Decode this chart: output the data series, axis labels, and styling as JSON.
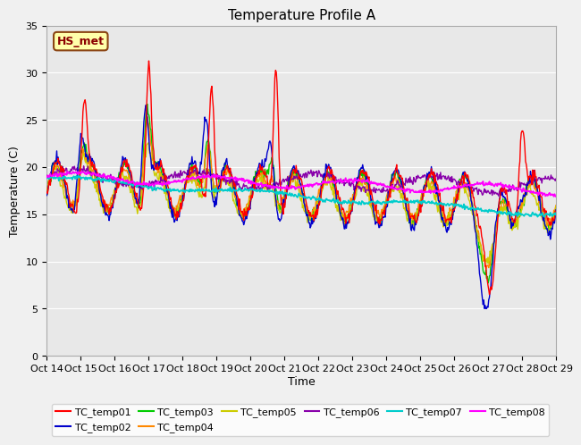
{
  "title": "Temperature Profile A",
  "xlabel": "Time",
  "ylabel": "Temperature (C)",
  "ylim": [
    0,
    35
  ],
  "xlim": [
    0,
    15
  ],
  "x_tick_labels": [
    "Oct 14",
    "Oct 15",
    "Oct 16",
    "Oct 17",
    "Oct 18",
    "Oct 19",
    "Oct 20",
    "Oct 21",
    "Oct 22",
    "Oct 23",
    "Oct 24",
    "Oct 25",
    "Oct 26",
    "Oct 27",
    "Oct 28",
    "Oct 29"
  ],
  "annotation": "HS_met",
  "annotation_color": "#8B0000",
  "annotation_bg": "#ffffaa",
  "annotation_edge": "#8B4513",
  "fig_bg_color": "#f0f0f0",
  "plot_bg_color": "#e8e8e8",
  "series_colors": {
    "TC_temp01": "#ff0000",
    "TC_temp02": "#0000cc",
    "TC_temp03": "#00cc00",
    "TC_temp04": "#ff8800",
    "TC_temp05": "#cccc00",
    "TC_temp06": "#8800aa",
    "TC_temp07": "#00cccc",
    "TC_temp08": "#ff00ff"
  },
  "grid_color": "#ffffff",
  "title_fontsize": 11,
  "axis_fontsize": 9,
  "tick_fontsize": 8,
  "legend_fontsize": 8
}
